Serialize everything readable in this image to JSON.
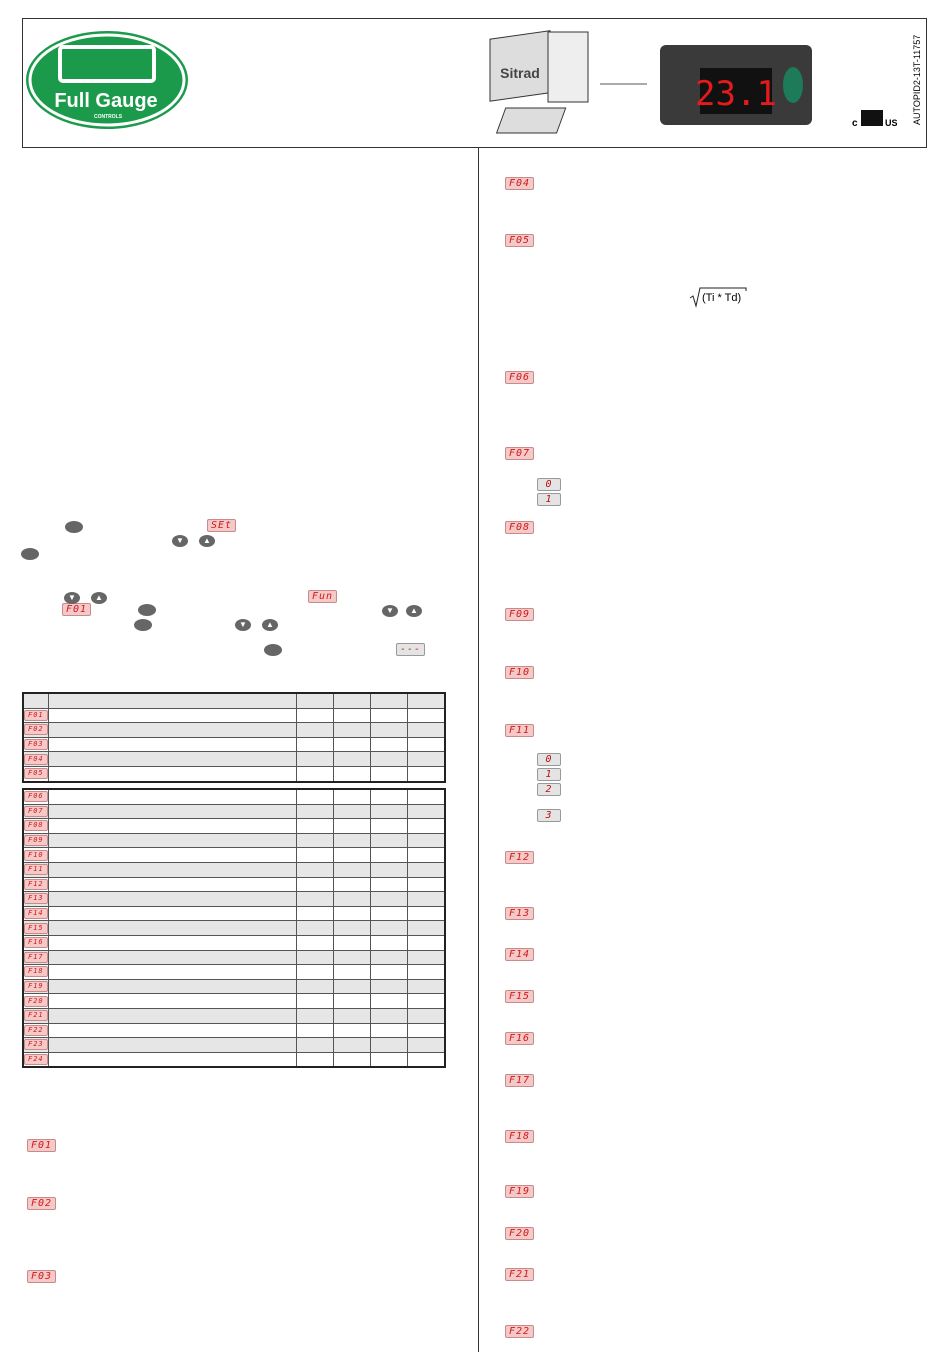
{
  "header": {
    "logo_text": "Full Gauge",
    "logo_subtext": "CONTROLS",
    "software": "Sitrad",
    "display_value": "23.1",
    "doc_code": "AUTOPID2-13T-11757",
    "cert_left": "c",
    "cert_right": "US"
  },
  "instructions": {
    "display_set": "SEt",
    "display_fun": "Fun",
    "display_first": "F01",
    "display_exit": "---"
  },
  "table": {
    "group_1": [
      "F01",
      "F02",
      "F03",
      "F04",
      "F05"
    ],
    "group_2": [
      "F06",
      "F07",
      "F08",
      "F09",
      "F10",
      "F11",
      "F12",
      "F13",
      "F14",
      "F15",
      "F16",
      "F17",
      "F18",
      "F19",
      "F20",
      "F21",
      "F22",
      "F23",
      "F24"
    ]
  },
  "descriptions_left": [
    {
      "code": "F01"
    },
    {
      "code": "F02"
    },
    {
      "code": "F03"
    }
  ],
  "descriptions_right": [
    {
      "code": "F04"
    },
    {
      "code": "F05",
      "formula": "(Ti * Td)"
    },
    {
      "code": "F06"
    },
    {
      "code": "F07",
      "options": [
        "0",
        "1"
      ]
    },
    {
      "code": "F08"
    },
    {
      "code": "F09"
    },
    {
      "code": "F10"
    },
    {
      "code": "F11",
      "options": [
        "0",
        "1",
        "2",
        "3"
      ]
    },
    {
      "code": "F12"
    },
    {
      "code": "F13"
    },
    {
      "code": "F14"
    },
    {
      "code": "F15"
    },
    {
      "code": "F16"
    },
    {
      "code": "F17"
    },
    {
      "code": "F18"
    },
    {
      "code": "F19"
    },
    {
      "code": "F20"
    },
    {
      "code": "F21"
    },
    {
      "code": "F22"
    }
  ]
}
